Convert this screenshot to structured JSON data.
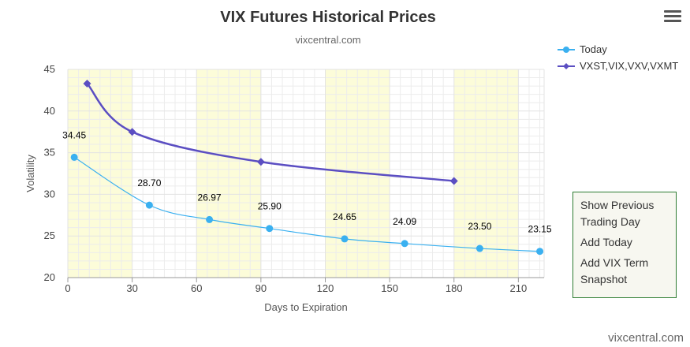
{
  "header": {
    "title": "VIX Futures Historical Prices",
    "subtitle": "vixcentral.com"
  },
  "menu": {
    "icon": "hamburger-icon"
  },
  "legend": {
    "items": [
      "Today",
      "VXST,VIX,VXV,VXMT"
    ]
  },
  "side_menu": {
    "items": [
      "Show Previous Trading Day",
      "Add Today",
      "Add VIX Term Snapshot"
    ]
  },
  "credit": "vixcentral.com",
  "colors": {
    "today": "#3ab0f0",
    "term": "#5b4ec2",
    "band": "#fcfcd9",
    "grid": "#e3e3e3",
    "menu_border": "#2e7d32"
  },
  "chart_data": {
    "type": "line",
    "xlabel": "Days to Expiration",
    "ylabel": "Volatility",
    "xlim": [
      0,
      222
    ],
    "ylim": [
      20,
      45
    ],
    "xticks": [
      0,
      30,
      60,
      90,
      120,
      150,
      180,
      210
    ],
    "yticks": [
      20,
      25,
      30,
      35,
      40,
      45
    ],
    "highlight_bands": [
      [
        0,
        30
      ],
      [
        60,
        90
      ],
      [
        120,
        150
      ],
      [
        180,
        210
      ]
    ],
    "grid": true,
    "legend_position": "top-right",
    "series": [
      {
        "name": "Today",
        "marker": "circle",
        "x": [
          3,
          38,
          66,
          94,
          129,
          157,
          192,
          220
        ],
        "y": [
          34.45,
          28.7,
          26.97,
          25.9,
          24.65,
          24.09,
          23.5,
          23.15
        ],
        "labels": [
          "34.45",
          "28.70",
          "26.97",
          "25.90",
          "24.65",
          "24.09",
          "23.50",
          "23.15"
        ]
      },
      {
        "name": "VXST,VIX,VXV,VXMT",
        "marker": "diamond",
        "x": [
          9,
          30,
          90,
          180
        ],
        "y": [
          43.3,
          37.5,
          33.9,
          31.6
        ]
      }
    ]
  }
}
